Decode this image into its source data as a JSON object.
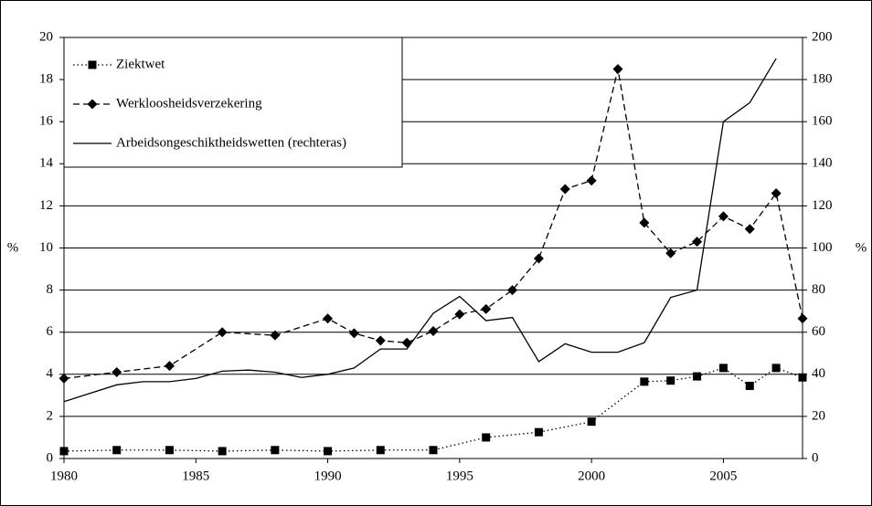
{
  "chart_data": {
    "type": "line",
    "y_label": "%",
    "y2_label": "%",
    "xlim": [
      1980,
      2008
    ],
    "xticks": [
      1980,
      1985,
      1990,
      1995,
      2000,
      2005
    ],
    "ylim": [
      0,
      20
    ],
    "yticks": [
      0,
      2,
      4,
      6,
      8,
      10,
      12,
      14,
      16,
      18,
      20
    ],
    "y2lim": [
      0,
      200
    ],
    "y2ticks": [
      0,
      20,
      40,
      60,
      80,
      100,
      120,
      140,
      160,
      180,
      200
    ],
    "grid": true,
    "legend": "top-left",
    "series": [
      {
        "name": "Ziektwet",
        "color": "#000000",
        "dash": "dotted",
        "marker": "square",
        "x": [
          1980,
          1982,
          1984,
          1986,
          1988,
          1990,
          1992,
          1994,
          1996,
          1998,
          2000,
          2002,
          2003,
          2004,
          2005,
          2006,
          2007,
          2008
        ],
        "values": [
          0.35,
          0.4,
          0.4,
          0.35,
          0.4,
          0.35,
          0.4,
          0.4,
          1.0,
          1.25,
          1.75,
          3.65,
          3.7,
          3.9,
          4.3,
          3.45,
          4.3,
          3.85
        ]
      },
      {
        "name": "Werkloosheidsverzekering",
        "color": "#000000",
        "dash": "dashed",
        "marker": "diamond",
        "x": [
          1980,
          1982,
          1984,
          1986,
          1988,
          1990,
          1991,
          1992,
          1993,
          1994,
          1995,
          1996,
          1997,
          1998,
          1999,
          2000,
          2001,
          2002,
          2003,
          2004,
          2005,
          2006,
          2007,
          2008
        ],
        "values": [
          3.8,
          4.1,
          4.4,
          6.0,
          5.85,
          6.65,
          5.95,
          5.6,
          5.5,
          6.05,
          6.85,
          7.1,
          8.0,
          9.5,
          12.8,
          13.2,
          18.5,
          11.2,
          9.75,
          10.3,
          11.5,
          10.9,
          12.6,
          6.65
        ]
      },
      {
        "name": "Arbeidsongeschiktheidswetten (rechteras)",
        "color": "#000000",
        "dash": "solid",
        "marker": "none",
        "axis": "y2",
        "x": [
          1980,
          1981,
          1982,
          1983,
          1984,
          1985,
          1986,
          1987,
          1988,
          1989,
          1990,
          1991,
          1992,
          1993,
          1994,
          1995,
          1996,
          1997,
          1998,
          1999,
          2000,
          2001,
          2002,
          2003,
          2004,
          2005,
          2006,
          2007
        ],
        "values": [
          27,
          31,
          35,
          36.5,
          36.5,
          38,
          41.5,
          42,
          41,
          38.5,
          40,
          43,
          52,
          52,
          69,
          77,
          65.5,
          67,
          46,
          54.5,
          50.5,
          50.5,
          55,
          76.5,
          80,
          160,
          169,
          190
        ]
      }
    ]
  }
}
